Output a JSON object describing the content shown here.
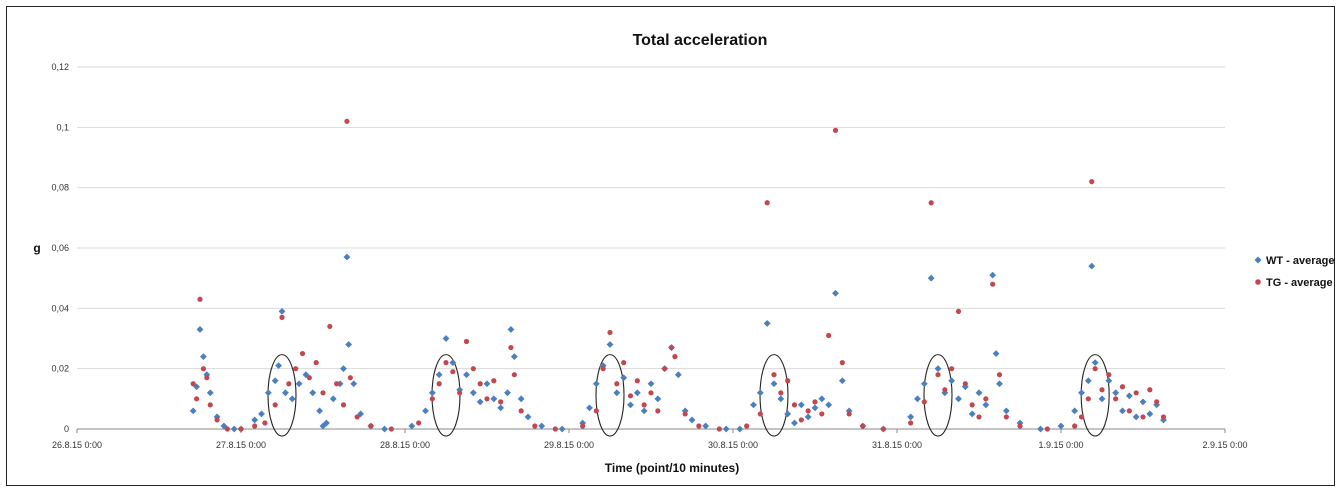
{
  "chart_data": {
    "type": "scatter",
    "title": "Total acceleration",
    "xlabel": "Time (point/10 minutes)",
    "ylabel": "g",
    "ylim": [
      0,
      0.12
    ],
    "yticks": [
      "0",
      "0,02",
      "0,04",
      "0,06",
      "0,08",
      "0,1",
      "0,12"
    ],
    "xlim": [
      "26.8.15 0:00",
      "2.9.15 0:00"
    ],
    "xticks": [
      "26.8.15 0:00",
      "27.8.15 0:00",
      "28.8.15 0:00",
      "29.8.15 0:00",
      "30.8.15 0:00",
      "31.8.15 0:00",
      "1.9.15 0:00",
      "2.9.15 0:00"
    ],
    "grid": true,
    "legend": "right",
    "series": [
      {
        "name": "WT - average",
        "color": "#4a7fc1",
        "marker": "diamond",
        "points": [
          [
            "26.8.15 17:00",
            0.006
          ],
          [
            "26.8.15 17:30",
            0.014
          ],
          [
            "26.8.15 18:00",
            0.033
          ],
          [
            "26.8.15 18:30",
            0.024
          ],
          [
            "26.8.15 19:00",
            0.018
          ],
          [
            "26.8.15 19:30",
            0.012
          ],
          [
            "26.8.15 20:30",
            0.004
          ],
          [
            "26.8.15 21:30",
            0.001
          ],
          [
            "26.8.15 23:00",
            0.0
          ],
          [
            "27.8.15 0:00",
            0.0
          ],
          [
            "27.8.15 2:00",
            0.003
          ],
          [
            "27.8.15 3:00",
            0.005
          ],
          [
            "27.8.15 4:00",
            0.012
          ],
          [
            "27.8.15 5:00",
            0.016
          ],
          [
            "27.8.15 5:30",
            0.021
          ],
          [
            "27.8.15 6:00",
            0.039
          ],
          [
            "27.8.15 6:30",
            0.012
          ],
          [
            "27.8.15 7:30",
            0.01
          ],
          [
            "27.8.15 8:30",
            0.015
          ],
          [
            "27.8.15 9:30",
            0.018
          ],
          [
            "27.8.15 10:30",
            0.012
          ],
          [
            "27.8.15 11:30",
            0.006
          ],
          [
            "27.8.15 12:00",
            0.001
          ],
          [
            "27.8.15 12:30",
            0.002
          ],
          [
            "27.8.15 13:30",
            0.01
          ],
          [
            "27.8.15 14:30",
            0.015
          ],
          [
            "27.8.15 15:00",
            0.02
          ],
          [
            "27.8.15 15:30",
            0.057
          ],
          [
            "27.8.15 15:45",
            0.028
          ],
          [
            "27.8.15 16:30",
            0.015
          ],
          [
            "27.8.15 17:30",
            0.005
          ],
          [
            "27.8.15 19:00",
            0.001
          ],
          [
            "27.8.15 21:00",
            0.0
          ],
          [
            "28.8.15 1:00",
            0.001
          ],
          [
            "28.8.15 3:00",
            0.006
          ],
          [
            "28.8.15 4:00",
            0.012
          ],
          [
            "28.8.15 5:00",
            0.018
          ],
          [
            "28.8.15 6:00",
            0.03
          ],
          [
            "28.8.15 7:00",
            0.022
          ],
          [
            "28.8.15 8:00",
            0.013
          ],
          [
            "28.8.15 9:00",
            0.018
          ],
          [
            "28.8.15 10:00",
            0.012
          ],
          [
            "28.8.15 11:00",
            0.009
          ],
          [
            "28.8.15 12:00",
            0.015
          ],
          [
            "28.8.15 13:00",
            0.01
          ],
          [
            "28.8.15 14:00",
            0.007
          ],
          [
            "28.8.15 15:00",
            0.012
          ],
          [
            "28.8.15 15:30",
            0.033
          ],
          [
            "28.8.15 16:00",
            0.024
          ],
          [
            "28.8.15 17:00",
            0.01
          ],
          [
            "28.8.15 18:00",
            0.004
          ],
          [
            "28.8.15 20:00",
            0.001
          ],
          [
            "28.8.15 23:00",
            0.0
          ],
          [
            "29.8.15 2:00",
            0.002
          ],
          [
            "29.8.15 3:00",
            0.007
          ],
          [
            "29.8.15 4:00",
            0.015
          ],
          [
            "29.8.15 5:00",
            0.021
          ],
          [
            "29.8.15 6:00",
            0.028
          ],
          [
            "29.8.15 7:00",
            0.012
          ],
          [
            "29.8.15 8:00",
            0.017
          ],
          [
            "29.8.15 9:00",
            0.008
          ],
          [
            "29.8.15 10:00",
            0.012
          ],
          [
            "29.8.15 11:00",
            0.006
          ],
          [
            "29.8.15 12:00",
            0.015
          ],
          [
            "29.8.15 13:00",
            0.01
          ],
          [
            "29.8.15 14:00",
            0.02
          ],
          [
            "29.8.15 15:00",
            0.027
          ],
          [
            "29.8.15 16:00",
            0.018
          ],
          [
            "29.8.15 17:00",
            0.006
          ],
          [
            "29.8.15 18:00",
            0.003
          ],
          [
            "29.8.15 20:00",
            0.001
          ],
          [
            "29.8.15 23:00",
            0.0
          ],
          [
            "30.8.15 1:00",
            0.0
          ],
          [
            "30.8.15 3:00",
            0.008
          ],
          [
            "30.8.15 4:00",
            0.012
          ],
          [
            "30.8.15 5:00",
            0.035
          ],
          [
            "30.8.15 6:00",
            0.015
          ],
          [
            "30.8.15 7:00",
            0.01
          ],
          [
            "30.8.15 8:00",
            0.005
          ],
          [
            "30.8.15 9:00",
            0.002
          ],
          [
            "30.8.15 10:00",
            0.008
          ],
          [
            "30.8.15 11:00",
            0.004
          ],
          [
            "30.8.15 12:00",
            0.007
          ],
          [
            "30.8.15 13:00",
            0.01
          ],
          [
            "30.8.15 14:00",
            0.008
          ],
          [
            "30.8.15 15:00",
            0.045
          ],
          [
            "30.8.15 16:00",
            0.016
          ],
          [
            "30.8.15 17:00",
            0.006
          ],
          [
            "30.8.15 19:00",
            0.001
          ],
          [
            "30.8.15 22:00",
            0.0
          ],
          [
            "31.8.15 2:00",
            0.004
          ],
          [
            "31.8.15 3:00",
            0.01
          ],
          [
            "31.8.15 4:00",
            0.015
          ],
          [
            "31.8.15 5:00",
            0.05
          ],
          [
            "31.8.15 6:00",
            0.02
          ],
          [
            "31.8.15 7:00",
            0.012
          ],
          [
            "31.8.15 8:00",
            0.016
          ],
          [
            "31.8.15 9:00",
            0.01
          ],
          [
            "31.8.15 10:00",
            0.014
          ],
          [
            "31.8.15 11:00",
            0.005
          ],
          [
            "31.8.15 12:00",
            0.012
          ],
          [
            "31.8.15 13:00",
            0.008
          ],
          [
            "31.8.15 14:00",
            0.051
          ],
          [
            "31.8.15 14:30",
            0.025
          ],
          [
            "31.8.15 15:00",
            0.015
          ],
          [
            "31.8.15 16:00",
            0.006
          ],
          [
            "31.8.15 18:00",
            0.002
          ],
          [
            "31.8.15 21:00",
            0.0
          ],
          [
            "1.9.15 0:00",
            0.001
          ],
          [
            "1.9.15 2:00",
            0.006
          ],
          [
            "1.9.15 3:00",
            0.012
          ],
          [
            "1.9.15 4:00",
            0.016
          ],
          [
            "1.9.15 4:30",
            0.054
          ],
          [
            "1.9.15 5:00",
            0.022
          ],
          [
            "1.9.15 6:00",
            0.01
          ],
          [
            "1.9.15 7:00",
            0.016
          ],
          [
            "1.9.15 8:00",
            0.012
          ],
          [
            "1.9.15 9:00",
            0.006
          ],
          [
            "1.9.15 10:00",
            0.011
          ],
          [
            "1.9.15 11:00",
            0.004
          ],
          [
            "1.9.15 12:00",
            0.009
          ],
          [
            "1.9.15 13:00",
            0.005
          ],
          [
            "1.9.15 14:00",
            0.008
          ],
          [
            "1.9.15 15:00",
            0.003
          ]
        ]
      },
      {
        "name": "TG - average",
        "color": "#c2474f",
        "marker": "circle",
        "points": [
          [
            "26.8.15 17:00",
            0.015
          ],
          [
            "26.8.15 17:30",
            0.01
          ],
          [
            "26.8.15 18:00",
            0.043
          ],
          [
            "26.8.15 18:30",
            0.02
          ],
          [
            "26.8.15 19:00",
            0.017
          ],
          [
            "26.8.15 19:30",
            0.008
          ],
          [
            "26.8.15 20:30",
            0.003
          ],
          [
            "26.8.15 22:00",
            0.0
          ],
          [
            "27.8.15 0:00",
            0.0
          ],
          [
            "27.8.15 2:00",
            0.001
          ],
          [
            "27.8.15 3:30",
            0.002
          ],
          [
            "27.8.15 5:00",
            0.008
          ],
          [
            "27.8.15 6:00",
            0.037
          ],
          [
            "27.8.15 7:00",
            0.015
          ],
          [
            "27.8.15 8:00",
            0.02
          ],
          [
            "27.8.15 9:00",
            0.025
          ],
          [
            "27.8.15 10:00",
            0.017
          ],
          [
            "27.8.15 11:00",
            0.022
          ],
          [
            "27.8.15 12:00",
            0.012
          ],
          [
            "27.8.15 13:00",
            0.034
          ],
          [
            "27.8.15 14:00",
            0.015
          ],
          [
            "27.8.15 15:00",
            0.008
          ],
          [
            "27.8.15 15:30",
            0.102
          ],
          [
            "27.8.15 16:00",
            0.017
          ],
          [
            "27.8.15 17:00",
            0.004
          ],
          [
            "27.8.15 19:00",
            0.001
          ],
          [
            "27.8.15 22:00",
            0.0
          ],
          [
            "28.8.15 2:00",
            0.002
          ],
          [
            "28.8.15 4:00",
            0.01
          ],
          [
            "28.8.15 5:00",
            0.015
          ],
          [
            "28.8.15 6:00",
            0.022
          ],
          [
            "28.8.15 7:00",
            0.019
          ],
          [
            "28.8.15 8:00",
            0.012
          ],
          [
            "28.8.15 9:00",
            0.029
          ],
          [
            "28.8.15 10:00",
            0.02
          ],
          [
            "28.8.15 11:00",
            0.015
          ],
          [
            "28.8.15 12:00",
            0.01
          ],
          [
            "28.8.15 13:00",
            0.016
          ],
          [
            "28.8.15 14:00",
            0.009
          ],
          [
            "28.8.15 15:30",
            0.027
          ],
          [
            "28.8.15 16:00",
            0.018
          ],
          [
            "28.8.15 17:00",
            0.006
          ],
          [
            "28.8.15 19:00",
            0.001
          ],
          [
            "28.8.15 22:00",
            0.0
          ],
          [
            "29.8.15 2:00",
            0.001
          ],
          [
            "29.8.15 4:00",
            0.006
          ],
          [
            "29.8.15 5:00",
            0.02
          ],
          [
            "29.8.15 6:00",
            0.032
          ],
          [
            "29.8.15 7:00",
            0.015
          ],
          [
            "29.8.15 8:00",
            0.022
          ],
          [
            "29.8.15 9:00",
            0.011
          ],
          [
            "29.8.15 10:00",
            0.016
          ],
          [
            "29.8.15 11:00",
            0.008
          ],
          [
            "29.8.15 12:00",
            0.012
          ],
          [
            "29.8.15 13:00",
            0.006
          ],
          [
            "29.8.15 14:00",
            0.02
          ],
          [
            "29.8.15 15:00",
            0.027
          ],
          [
            "29.8.15 15:30",
            0.024
          ],
          [
            "29.8.15 17:00",
            0.005
          ],
          [
            "29.8.15 19:00",
            0.001
          ],
          [
            "29.8.15 22:00",
            0.0
          ],
          [
            "30.8.15 2:00",
            0.001
          ],
          [
            "30.8.15 4:00",
            0.005
          ],
          [
            "30.8.15 5:00",
            0.075
          ],
          [
            "30.8.15 6:00",
            0.018
          ],
          [
            "30.8.15 7:00",
            0.012
          ],
          [
            "30.8.15 8:00",
            0.016
          ],
          [
            "30.8.15 9:00",
            0.008
          ],
          [
            "30.8.15 10:00",
            0.003
          ],
          [
            "30.8.15 11:00",
            0.006
          ],
          [
            "30.8.15 12:00",
            0.009
          ],
          [
            "30.8.15 13:00",
            0.005
          ],
          [
            "30.8.15 14:00",
            0.031
          ],
          [
            "30.8.15 15:00",
            0.099
          ],
          [
            "30.8.15 16:00",
            0.022
          ],
          [
            "30.8.15 17:00",
            0.005
          ],
          [
            "30.8.15 19:00",
            0.001
          ],
          [
            "30.8.15 22:00",
            0.0
          ],
          [
            "31.8.15 2:00",
            0.002
          ],
          [
            "31.8.15 4:00",
            0.009
          ],
          [
            "31.8.15 5:00",
            0.075
          ],
          [
            "31.8.15 6:00",
            0.018
          ],
          [
            "31.8.15 7:00",
            0.013
          ],
          [
            "31.8.15 8:00",
            0.02
          ],
          [
            "31.8.15 9:00",
            0.039
          ],
          [
            "31.8.15 10:00",
            0.015
          ],
          [
            "31.8.15 11:00",
            0.008
          ],
          [
            "31.8.15 12:00",
            0.004
          ],
          [
            "31.8.15 13:00",
            0.01
          ],
          [
            "31.8.15 14:00",
            0.048
          ],
          [
            "31.8.15 15:00",
            0.018
          ],
          [
            "31.8.15 16:00",
            0.004
          ],
          [
            "31.8.15 18:00",
            0.001
          ],
          [
            "31.8.15 22:00",
            0.0
          ],
          [
            "1.9.15 2:00",
            0.001
          ],
          [
            "1.9.15 3:00",
            0.004
          ],
          [
            "1.9.15 4:00",
            0.01
          ],
          [
            "1.9.15 4:30",
            0.082
          ],
          [
            "1.9.15 5:00",
            0.02
          ],
          [
            "1.9.15 6:00",
            0.013
          ],
          [
            "1.9.15 7:00",
            0.018
          ],
          [
            "1.9.15 8:00",
            0.01
          ],
          [
            "1.9.15 9:00",
            0.014
          ],
          [
            "1.9.15 10:00",
            0.006
          ],
          [
            "1.9.15 11:00",
            0.012
          ],
          [
            "1.9.15 12:00",
            0.004
          ],
          [
            "1.9.15 13:00",
            0.013
          ],
          [
            "1.9.15 14:00",
            0.009
          ],
          [
            "1.9.15 15:00",
            0.004
          ]
        ]
      }
    ],
    "annotations": {
      "shape": "ellipse",
      "stroke": "#222222",
      "centers": [
        "27.8.15 6:00",
        "28.8.15 6:00",
        "29.8.15 6:00",
        "30.8.15 6:00",
        "31.8.15 6:00",
        "1.9.15 5:00"
      ],
      "y_range": [
        0,
        0.023
      ]
    }
  }
}
